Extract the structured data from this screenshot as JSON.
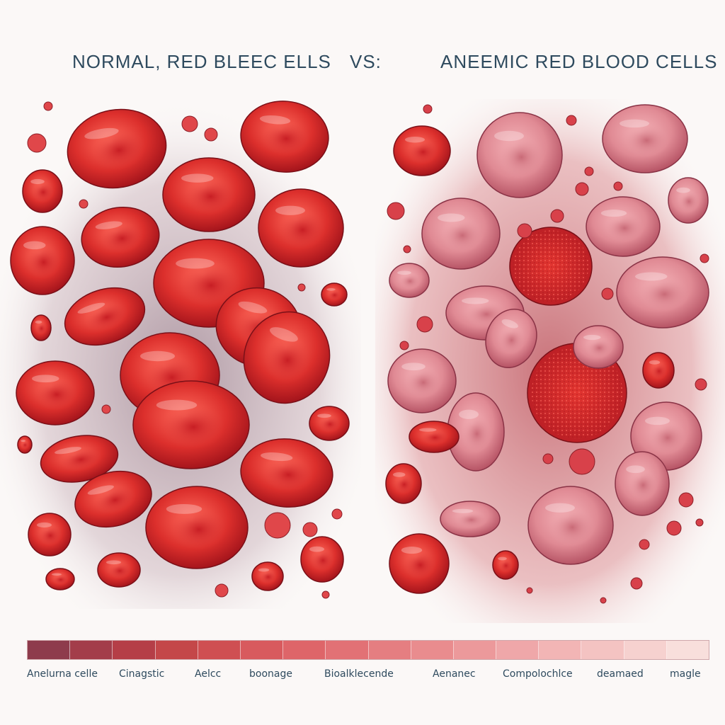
{
  "header": {
    "left_title": "NORMAL, RED BLEEC ELLS",
    "vs_label": "VS:",
    "right_title": "ANEEMIC RED BLOOD CELLS"
  },
  "legend": {
    "colors": [
      "#8e3b4c",
      "#a33d4a",
      "#b53e47",
      "#c44749",
      "#cf4f52",
      "#d85a5e",
      "#de6569",
      "#e27175",
      "#e57e81",
      "#e98c8e",
      "#ec999b",
      "#efa7a9",
      "#f2b5b5",
      "#f4c3c2",
      "#f6d1cf",
      "#f8dfdc"
    ],
    "labels": [
      "Anelurna celle",
      "Cinagstic",
      "Aelcc",
      "boonage",
      "Bioalklecende",
      "Aenanec",
      "Compolochlce",
      "deamaed",
      "magle"
    ]
  },
  "colors": {
    "normal_cell": "#d42a2c",
    "anemic_cell": "#e7939b",
    "title_text": "#2e4a5e"
  }
}
